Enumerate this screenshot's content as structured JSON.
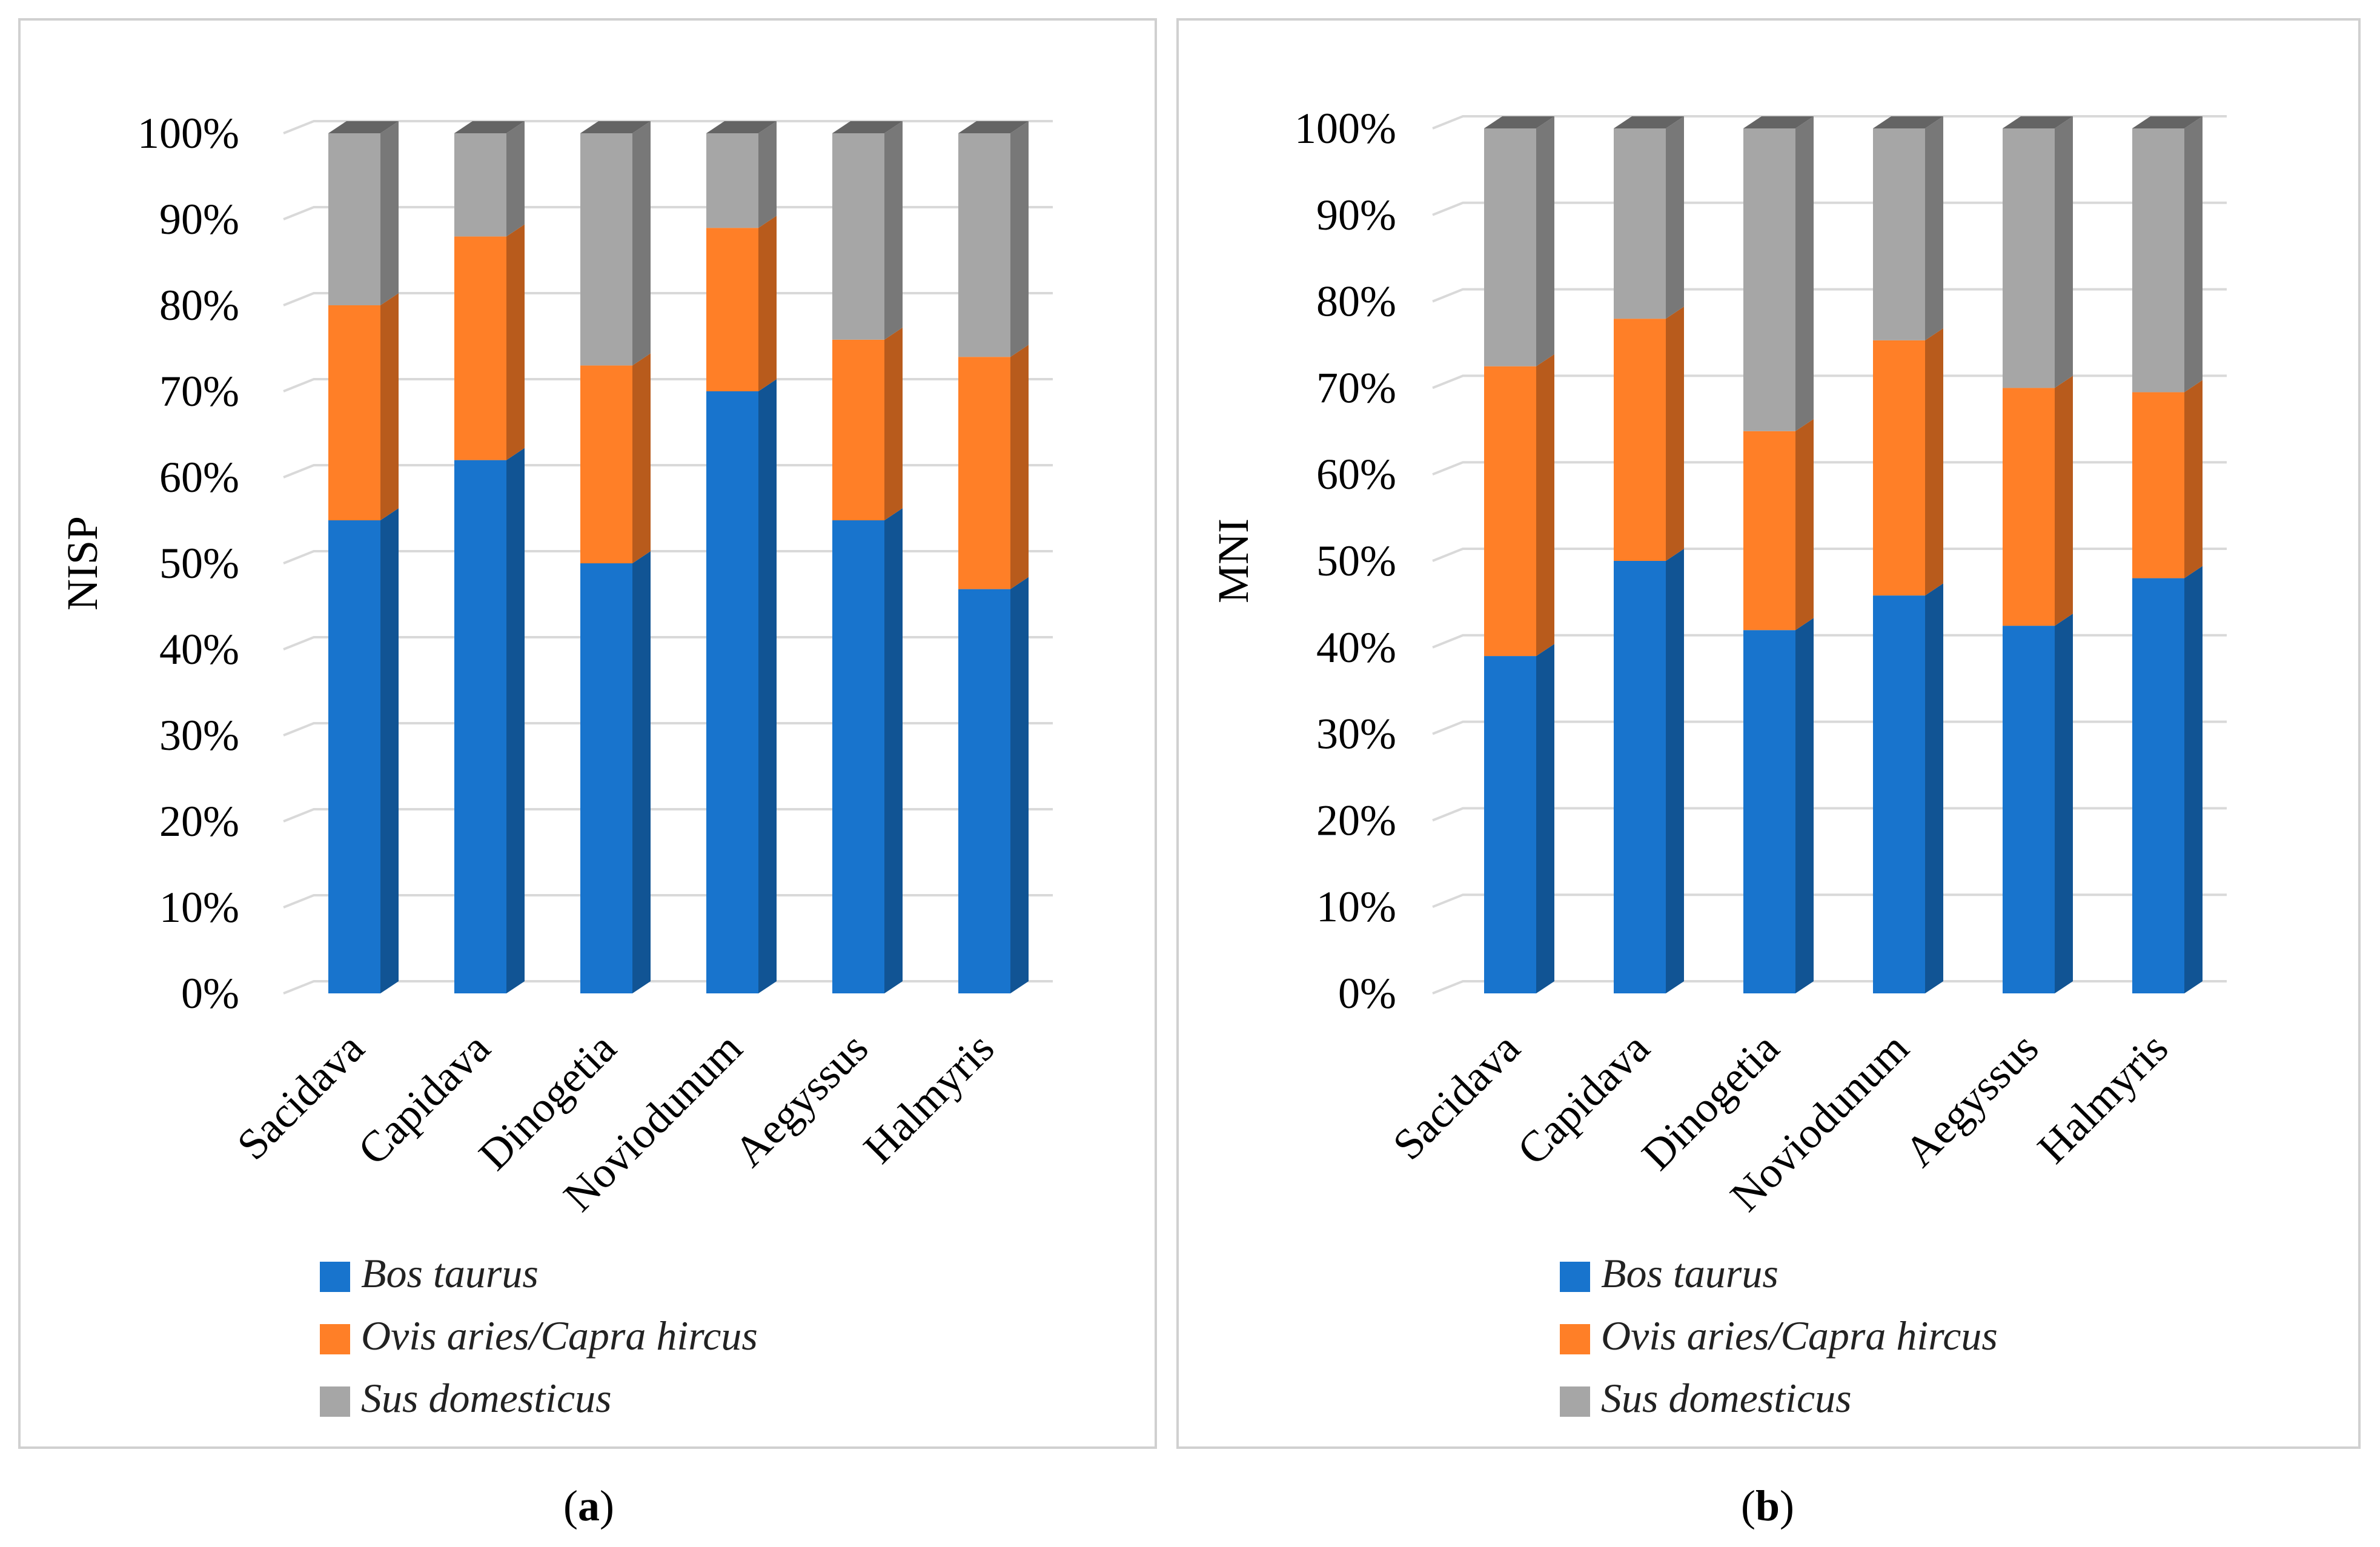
{
  "colors": {
    "bos": "#1874CD",
    "ovis": "#FF7F27",
    "sus": "#A6A6A6",
    "grid": "#D9D9D9",
    "frame": "#D0D0D0"
  },
  "chart_data": [
    {
      "type": "bar",
      "stacked": true,
      "three_d": true,
      "caption_letter": "a",
      "ylabel": "NISP",
      "ylim": [
        0,
        100
      ],
      "yticks": [
        "0%",
        "10%",
        "20%",
        "30%",
        "40%",
        "50%",
        "60%",
        "70%",
        "80%",
        "90%",
        "100%"
      ],
      "categories": [
        "Sacidava",
        "Capidava",
        "Dinogetia",
        "Noviodunum",
        "Aegyssus",
        "Halmyris"
      ],
      "series": [
        {
          "name": "Bos taurus",
          "values": [
            55,
            62,
            50,
            70,
            55,
            47
          ]
        },
        {
          "name": "Ovis aries/Capra hircus",
          "values": [
            25,
            26,
            23,
            19,
            21,
            27
          ]
        },
        {
          "name": "Sus domesticus",
          "values": [
            20,
            12,
            27,
            11,
            24,
            26
          ]
        }
      ],
      "legend": "bottom"
    },
    {
      "type": "bar",
      "stacked": true,
      "three_d": true,
      "caption_letter": "b",
      "ylabel": "MNI",
      "ylim": [
        0,
        100
      ],
      "yticks": [
        "0%",
        "10%",
        "20%",
        "30%",
        "40%",
        "50%",
        "60%",
        "70%",
        "80%",
        "90%",
        "100%"
      ],
      "categories": [
        "Sacidava",
        "Capidava",
        "Dinogetia",
        "Noviodunum",
        "Aegyssus",
        "Halmyris"
      ],
      "series": [
        {
          "name": "Bos taurus",
          "values": [
            39,
            50,
            42,
            46,
            42.5,
            48
          ]
        },
        {
          "name": "Ovis aries/Capra hircus",
          "values": [
            33.5,
            28,
            23,
            29.5,
            27.5,
            21.5
          ]
        },
        {
          "name": "Sus domesticus",
          "values": [
            27.5,
            22,
            35,
            24.5,
            30,
            30.5
          ]
        }
      ],
      "legend": "bottom"
    }
  ]
}
